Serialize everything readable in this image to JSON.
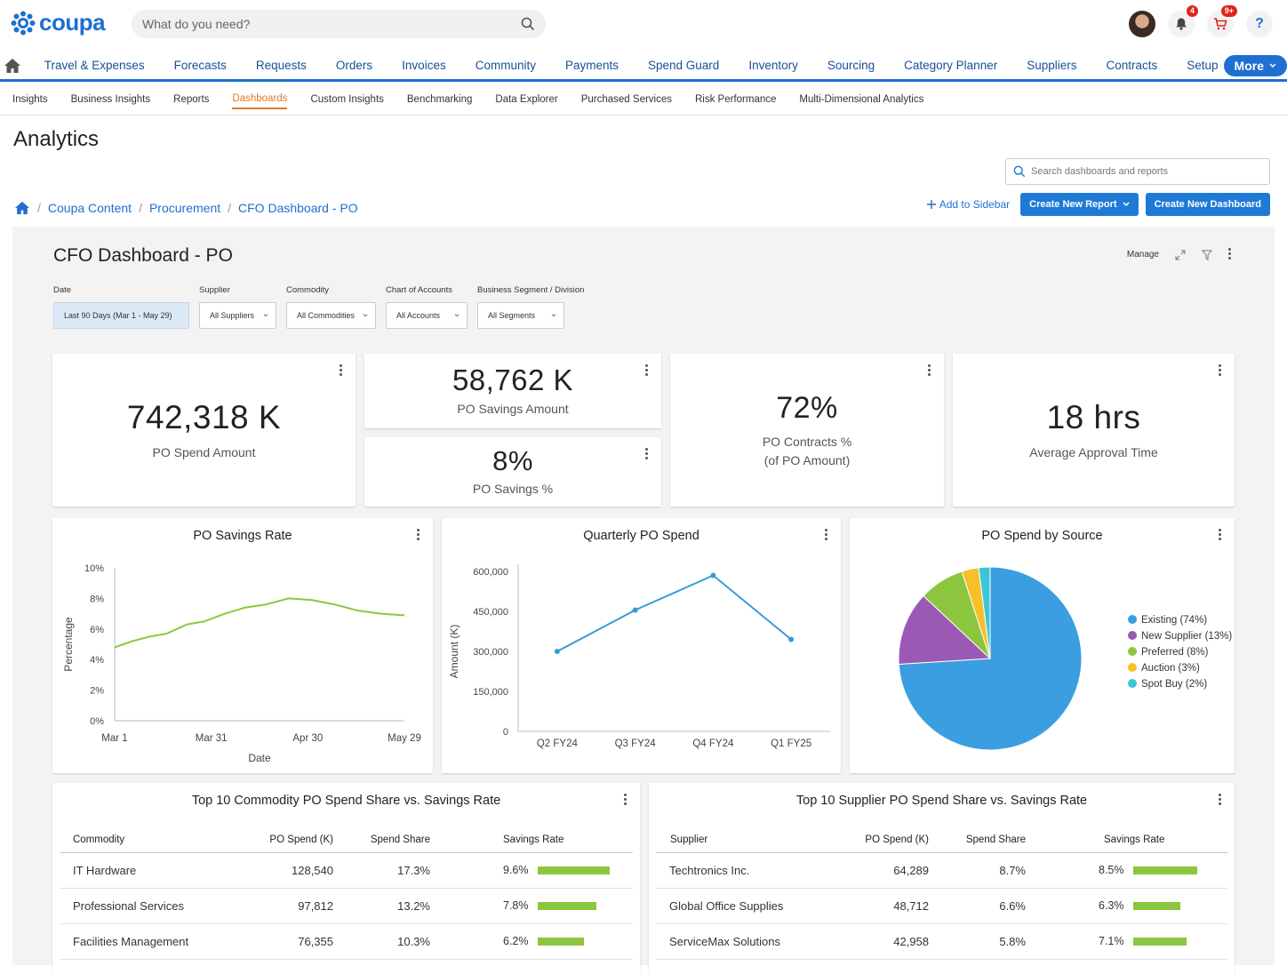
{
  "app": {
    "logo_text": "coupa"
  },
  "search": {
    "placeholder": "What do you need?"
  },
  "notifications": {
    "bell_count": "4",
    "cart_count": "9+"
  },
  "help_label": "?",
  "main_nav": [
    "Travel & Expenses",
    "Forecasts",
    "Requests",
    "Orders",
    "Invoices",
    "Community",
    "Payments",
    "Spend Guard",
    "Inventory",
    "Sourcing",
    "Category Planner",
    "Suppliers",
    "Contracts",
    "Setup"
  ],
  "more_label": "More",
  "sub_nav": [
    "Insights",
    "Business Insights",
    "Reports",
    "Dashboards",
    "Custom Insights",
    "Benchmarking",
    "Data Explorer",
    "Purchased Services",
    "Risk Performance",
    "Multi-Dimensional Analytics"
  ],
  "page_title": "Analytics",
  "sidebar_search": {
    "placeholder": "Search dashboards and reports"
  },
  "breadcrumb": [
    "Coupa Content",
    "Procurement",
    "CFO Dashboard - PO"
  ],
  "actions": {
    "add_sidebar": "Add to Sidebar",
    "create_report": "Create New Report",
    "create_dashboard": "Create New Dashboard"
  },
  "dashboard": {
    "title": "CFO Dashboard - PO",
    "manage": "Manage",
    "filters": [
      {
        "label": "Date",
        "value": "Last 90 Days (Mar 1 - May 29)"
      },
      {
        "label": "Supplier",
        "value": "All Suppliers"
      },
      {
        "label": "Commodity",
        "value": "All Commodities"
      },
      {
        "label": "Chart of Accounts",
        "value": "All Accounts"
      },
      {
        "label": "Business Segment / Division",
        "value": "All Segments"
      }
    ],
    "kpis": {
      "spend": {
        "value": "742,318 K",
        "label": "PO Spend Amount"
      },
      "savings_amount": {
        "value": "58,762 K",
        "label": "PO Savings Amount"
      },
      "savings_pct": {
        "value": "8%",
        "label": "PO Savings %"
      },
      "contracts": {
        "value": "72%",
        "label_line1": "PO Contracts %",
        "label_line2": "(of PO Amount)"
      },
      "approval": {
        "value": "18 hrs",
        "label": "Average Approval Time"
      }
    }
  },
  "chart_data": [
    {
      "type": "line",
      "title": "PO Savings Rate",
      "xlabel": "Date",
      "ylabel": "Percentage",
      "x_ticks": [
        "Mar 1",
        "Mar 31",
        "Apr 30",
        "May 29"
      ],
      "y_ticks": [
        "0%",
        "2%",
        "4%",
        "6%",
        "8%",
        "10%"
      ],
      "ylim": [
        0,
        10
      ],
      "x": [
        0,
        0.06,
        0.12,
        0.18,
        0.25,
        0.31,
        0.38,
        0.45,
        0.52,
        0.6,
        0.68,
        0.76,
        0.84,
        0.92,
        1.0
      ],
      "series": [
        {
          "values": [
            4.8,
            5.2,
            5.5,
            5.7,
            6.3,
            6.5,
            7.0,
            7.4,
            7.6,
            8.0,
            7.9,
            7.6,
            7.2,
            7.0,
            6.9
          ],
          "color": "#8cc63f"
        }
      ]
    },
    {
      "type": "line",
      "title": "Quarterly PO Spend",
      "ylabel": "Amount (K)",
      "categories": [
        "Q2 FY24",
        "Q3 FY24",
        "Q4 FY24",
        "Q1 FY25"
      ],
      "y_ticks": [
        "0",
        "150,000",
        "300,000",
        "450,000",
        "600,000"
      ],
      "ylim": [
        0,
        600000
      ],
      "series": [
        {
          "values": [
            300000,
            455000,
            585000,
            345000
          ],
          "color": "#3a9ad9"
        }
      ]
    },
    {
      "type": "pie",
      "title": "PO Spend by Source",
      "legend_position": "right",
      "slices": [
        {
          "label": "Existing (74%)",
          "value": 74,
          "color": "#3a9ee0"
        },
        {
          "label": "New Supplier (13%)",
          "value": 13,
          "color": "#9b59b6"
        },
        {
          "label": "Preferred (8%)",
          "value": 8,
          "color": "#8cc63f"
        },
        {
          "label": "Auction (3%)",
          "value": 3,
          "color": "#f5c02a"
        },
        {
          "label": "Spot Buy (2%)",
          "value": 2,
          "color": "#3bc6d8"
        }
      ]
    }
  ],
  "tables": {
    "commodity": {
      "title": "Top 10 Commodity PO Spend Share vs. Savings Rate",
      "headers": [
        "Commodity",
        "PO Spend (K)",
        "Spend Share",
        "Savings Rate"
      ],
      "rows": [
        {
          "name": "IT Hardware",
          "spend": "128,540",
          "share": "17.3%",
          "rate": "9.6%",
          "rate_value": 9.6
        },
        {
          "name": "Professional Services",
          "spend": "97,812",
          "share": "13.2%",
          "rate": "7.8%",
          "rate_value": 7.8
        },
        {
          "name": "Facilities Management",
          "spend": "76,355",
          "share": "10.3%",
          "rate": "6.2%",
          "rate_value": 6.2
        }
      ]
    },
    "supplier": {
      "title": "Top 10 Supplier PO Spend Share vs. Savings Rate",
      "headers": [
        "Supplier",
        "PO Spend (K)",
        "Spend Share",
        "Savings Rate"
      ],
      "rows": [
        {
          "name": "Techtronics Inc.",
          "spend": "64,289",
          "share": "8.7%",
          "rate": "8.5%",
          "rate_value": 8.5
        },
        {
          "name": "Global Office Supplies",
          "spend": "48,712",
          "share": "6.6%",
          "rate": "6.3%",
          "rate_value": 6.3
        },
        {
          "name": "ServiceMax Solutions",
          "spend": "42,958",
          "share": "5.8%",
          "rate": "7.1%",
          "rate_value": 7.1
        }
      ]
    }
  }
}
